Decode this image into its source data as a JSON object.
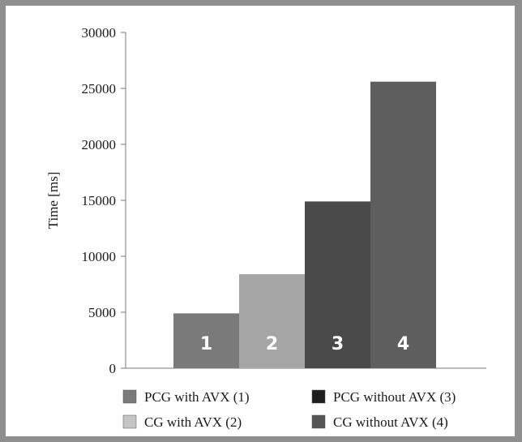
{
  "chart_data": {
    "type": "bar",
    "ylabel": "Time [ms]",
    "ylim": [
      0,
      30000
    ],
    "yticks": [
      0,
      5000,
      10000,
      15000,
      20000,
      25000,
      30000
    ],
    "grid": false,
    "legend_position": "bottom",
    "bars": [
      {
        "label": "1",
        "value": 4900,
        "color": "#7a7a7a"
      },
      {
        "label": "2",
        "value": 8400,
        "color": "#a6a6a6"
      },
      {
        "label": "3",
        "value": 14900,
        "color": "#4a4a4a"
      },
      {
        "label": "4",
        "value": 25600,
        "color": "#5e5e5e"
      }
    ],
    "legend": [
      {
        "text": "PCG with AVX (1)",
        "color": "#7a7a7a"
      },
      {
        "text": "PCG without AVX (3)",
        "color": "#1e1e1e"
      },
      {
        "text": "CG with AVX (2)",
        "color": "#c4c4c4"
      },
      {
        "text": "CG without AVX (4)",
        "color": "#555555"
      }
    ]
  }
}
